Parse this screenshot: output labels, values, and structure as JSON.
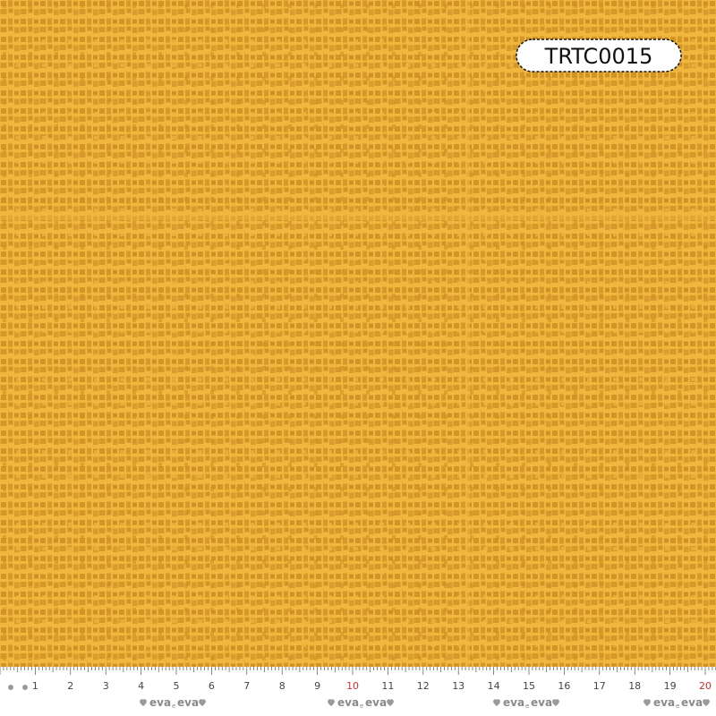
{
  "code_label": "TRTC0015",
  "ruler": {
    "labels": [
      1,
      2,
      3,
      4,
      5,
      6,
      7,
      8,
      9,
      10,
      11,
      12,
      13,
      14,
      15,
      16,
      17,
      18,
      19,
      20
    ]
  },
  "brand": {
    "first": "eva",
    "joiner": "e",
    "second": "eva"
  }
}
